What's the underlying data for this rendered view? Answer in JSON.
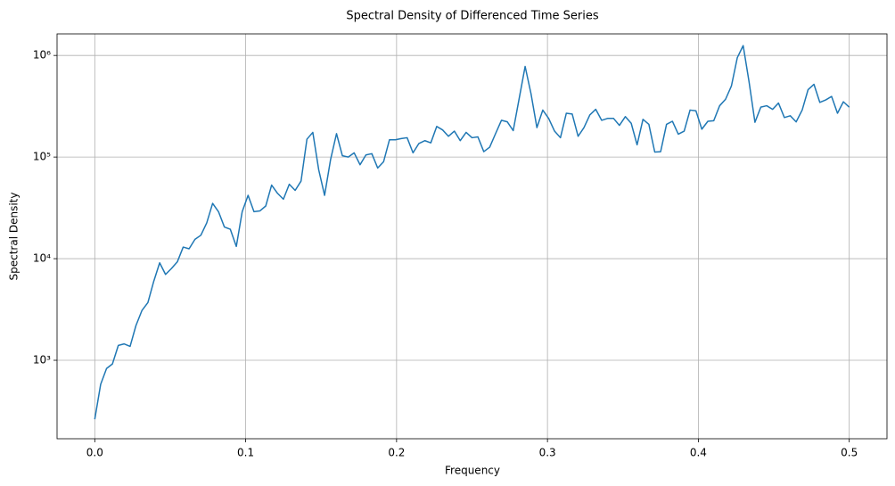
{
  "chart_data": {
    "type": "line",
    "title": "Spectral Density of Differenced Time Series",
    "x_label": "Frequency",
    "y_label": "Spectral Density",
    "yscale": "log",
    "grid": true,
    "xlim": [
      -0.025,
      0.525
    ],
    "ylim": [
      169,
      1630000
    ],
    "xticks": [
      {
        "value": 0,
        "label": "0.0"
      },
      0.1,
      0.2,
      0.3,
      0.4,
      0.5
    ],
    "yticks": [
      {
        "value": 1000,
        "label": "10³"
      },
      {
        "value": 10000,
        "label": "10⁴"
      },
      {
        "value": 100000,
        "label": "10⁵"
      },
      {
        "value": 1000000,
        "label": "10⁶"
      }
    ],
    "x": [
      0,
      0.0039,
      0.0078,
      0.0117,
      0.0156,
      0.0195,
      0.0234,
      0.0273,
      0.0313,
      0.0352,
      0.0391,
      0.043,
      0.0469,
      0.0508,
      0.0547,
      0.0586,
      0.0625,
      0.0664,
      0.0703,
      0.0742,
      0.0781,
      0.082,
      0.0859,
      0.0898,
      0.0938,
      0.0977,
      0.1016,
      0.1055,
      0.1094,
      0.1133,
      0.1172,
      0.1211,
      0.125,
      0.1289,
      0.1328,
      0.1367,
      0.1406,
      0.1445,
      0.1484,
      0.1523,
      0.1563,
      0.1602,
      0.1641,
      0.168,
      0.1719,
      0.1758,
      0.1797,
      0.1836,
      0.1875,
      0.1914,
      0.1953,
      0.1992,
      0.2031,
      0.207,
      0.2109,
      0.2148,
      0.2188,
      0.2227,
      0.2266,
      0.2305,
      0.2344,
      0.2383,
      0.2422,
      0.2461,
      0.25,
      0.2539,
      0.2578,
      0.2617,
      0.2656,
      0.2695,
      0.2734,
      0.2773,
      0.2813,
      0.2852,
      0.2891,
      0.293,
      0.2969,
      0.3008,
      0.3047,
      0.3086,
      0.3125,
      0.3164,
      0.3203,
      0.3242,
      0.3281,
      0.332,
      0.3359,
      0.3398,
      0.3438,
      0.3477,
      0.3516,
      0.3555,
      0.3594,
      0.3633,
      0.3672,
      0.3711,
      0.375,
      0.3789,
      0.3828,
      0.3867,
      0.3906,
      0.3945,
      0.3984,
      0.4023,
      0.4063,
      0.4102,
      0.4141,
      0.418,
      0.4219,
      0.4258,
      0.4297,
      0.4336,
      0.4375,
      0.4414,
      0.4453,
      0.4492,
      0.4531,
      0.457,
      0.4609,
      0.4648,
      0.4688,
      0.4727,
      0.4766,
      0.4805,
      0.4844,
      0.4883,
      0.4922,
      0.4961,
      0.5
    ],
    "series": [
      {
        "color": "#1f77b4",
        "values": [
          263,
          580,
          830,
          920,
          1400,
          1450,
          1370,
          2200,
          3100,
          3700,
          6000,
          9100,
          7000,
          8000,
          9300,
          13000,
          12500,
          15500,
          17000,
          22500,
          35000,
          29000,
          20500,
          19500,
          13200,
          29000,
          42000,
          29000,
          29500,
          33000,
          53000,
          44000,
          38500,
          54000,
          47000,
          58000,
          150000,
          175000,
          75000,
          42000,
          95000,
          170000,
          103000,
          100000,
          110000,
          84000,
          105000,
          108000,
          78000,
          90000,
          148000,
          148000,
          152000,
          155000,
          110000,
          136000,
          145000,
          138000,
          200000,
          185000,
          160000,
          180000,
          145000,
          175000,
          155000,
          158000,
          113000,
          125000,
          170000,
          230000,
          222000,
          182000,
          380000,
          780000,
          420000,
          195000,
          290000,
          240000,
          180000,
          155000,
          270000,
          265000,
          160000,
          195000,
          260000,
          295000,
          230000,
          240000,
          240000,
          205000,
          250000,
          215000,
          132000,
          235000,
          210000,
          112000,
          113000,
          210000,
          225000,
          168000,
          180000,
          290000,
          285000,
          188000,
          225000,
          228000,
          320000,
          370000,
          500000,
          950000,
          1250000,
          550000,
          220000,
          310000,
          320000,
          295000,
          340000,
          245000,
          255000,
          222000,
          290000,
          460000,
          520000,
          345000,
          365000,
          395000,
          270000,
          350000,
          310000
        ]
      }
    ]
  }
}
